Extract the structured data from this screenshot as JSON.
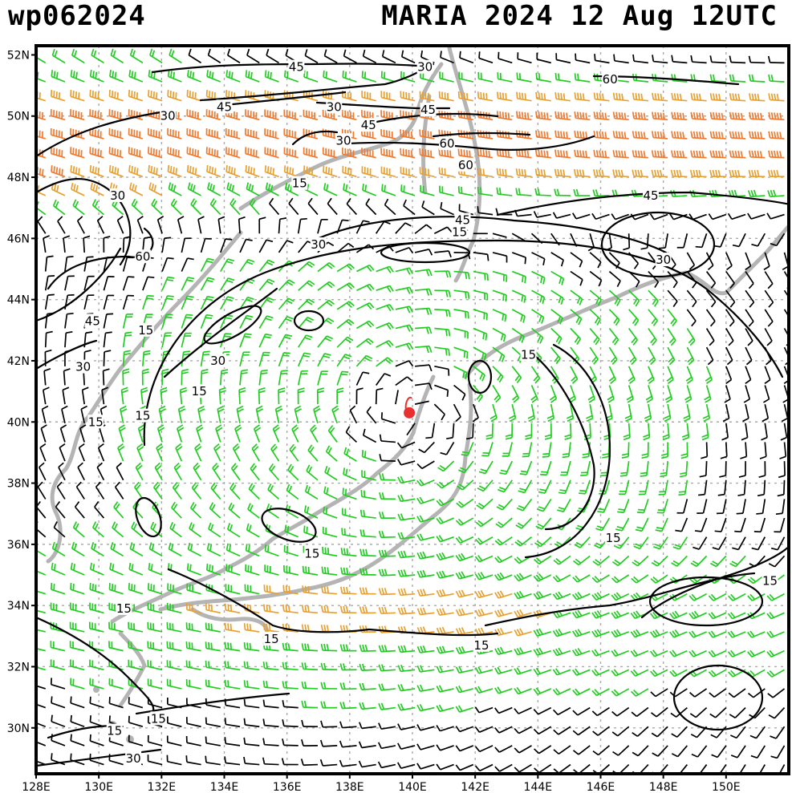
{
  "title": {
    "id": "wp062024",
    "info": "MARIA 2024 12 Aug 12UTC"
  },
  "map": {
    "lon_range": [
      128,
      152
    ],
    "lat_range": [
      28.5,
      52.3
    ],
    "lat_ticks": [
      "52N",
      "50N",
      "48N",
      "46N",
      "44N",
      "42N",
      "40N",
      "38N",
      "36N",
      "34N",
      "32N",
      "30N"
    ],
    "lon_ticks": [
      "128E",
      "130E",
      "132E",
      "134E",
      "136E",
      "138E",
      "140E",
      "142E",
      "144E",
      "146E",
      "148E",
      "150E"
    ],
    "storm_center": {
      "lon": 139.9,
      "lat": 40.3,
      "color": "#e83030"
    },
    "wind_colors": {
      "calm": "#000000",
      "moderate": "#22cc22",
      "strong": "#e8a030",
      "gale": "#f07a30",
      "storm": "#e83838"
    },
    "contour_labels": [
      {
        "text": "45",
        "lon": 136.3,
        "lat": 51.6
      },
      {
        "text": "30",
        "lon": 140.4,
        "lat": 51.6
      },
      {
        "text": "60",
        "lon": 146.3,
        "lat": 51.2
      },
      {
        "text": "45",
        "lon": 134.0,
        "lat": 50.3
      },
      {
        "text": "30",
        "lon": 137.5,
        "lat": 50.3
      },
      {
        "text": "45",
        "lon": 140.5,
        "lat": 50.2
      },
      {
        "text": "30",
        "lon": 132.2,
        "lat": 50.0
      },
      {
        "text": "45",
        "lon": 138.6,
        "lat": 49.7
      },
      {
        "text": "30",
        "lon": 137.8,
        "lat": 49.2
      },
      {
        "text": "60",
        "lon": 141.1,
        "lat": 49.1
      },
      {
        "text": "60",
        "lon": 141.7,
        "lat": 48.4
      },
      {
        "text": "15",
        "lon": 136.4,
        "lat": 47.8
      },
      {
        "text": "30",
        "lon": 130.6,
        "lat": 47.4
      },
      {
        "text": "45",
        "lon": 147.6,
        "lat": 47.4
      },
      {
        "text": "45",
        "lon": 141.6,
        "lat": 46.6
      },
      {
        "text": "15",
        "lon": 141.5,
        "lat": 46.2
      },
      {
        "text": "30",
        "lon": 137.0,
        "lat": 45.8
      },
      {
        "text": "60",
        "lon": 131.4,
        "lat": 45.4
      },
      {
        "text": "30",
        "lon": 148.0,
        "lat": 45.3
      },
      {
        "text": "45",
        "lon": 129.8,
        "lat": 43.3
      },
      {
        "text": "15",
        "lon": 131.5,
        "lat": 43.0
      },
      {
        "text": "15",
        "lon": 143.7,
        "lat": 42.2
      },
      {
        "text": "30",
        "lon": 133.8,
        "lat": 42.0
      },
      {
        "text": "30",
        "lon": 129.5,
        "lat": 41.8
      },
      {
        "text": "15",
        "lon": 133.2,
        "lat": 41.0
      },
      {
        "text": "15",
        "lon": 131.4,
        "lat": 40.2
      },
      {
        "text": "15",
        "lon": 129.9,
        "lat": 40.0
      },
      {
        "text": "15",
        "lon": 146.4,
        "lat": 36.2
      },
      {
        "text": "15",
        "lon": 136.8,
        "lat": 35.7
      },
      {
        "text": "15",
        "lon": 151.4,
        "lat": 34.8
      },
      {
        "text": "15",
        "lon": 130.8,
        "lat": 33.9
      },
      {
        "text": "15",
        "lon": 135.5,
        "lat": 32.9
      },
      {
        "text": "15",
        "lon": 142.2,
        "lat": 32.7
      },
      {
        "text": "15",
        "lon": 131.9,
        "lat": 30.3
      },
      {
        "text": "15",
        "lon": 130.5,
        "lat": 29.9
      },
      {
        "text": "30",
        "lon": 131.1,
        "lat": 29.0
      }
    ]
  }
}
